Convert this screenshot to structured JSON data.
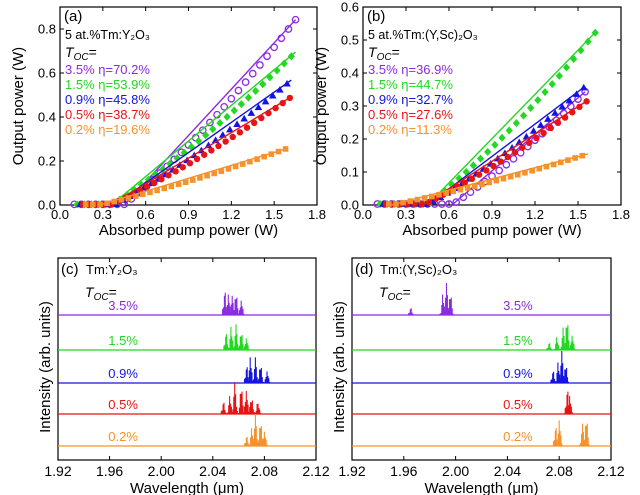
{
  "colors": {
    "p35": "#8a2be2",
    "p15": "#22d822",
    "p09": "#1414e0",
    "p05": "#e81414",
    "p02": "#f5922b"
  },
  "chart_data": [
    {
      "panel_label": "(a)",
      "type": "scatter",
      "material_text": "5 at.%Tm:Y₂O₃",
      "toc_text": "T",
      "toc_sub": "OC",
      "toc_eq": "=",
      "xlabel": "Absorbed pump power (W)",
      "ylabel": "Output power (W)",
      "xlim": [
        0,
        1.8
      ],
      "ylim": [
        0,
        0.9
      ],
      "xticks": [
        "0.0",
        "0.3",
        "0.6",
        "0.9",
        "1.2",
        "1.5",
        "1.8"
      ],
      "yticks": [
        "0.0",
        "0.2",
        "0.4",
        "0.6",
        "0.8"
      ],
      "series": [
        {
          "key": "p35",
          "name": "3.5% η=70.2%",
          "marker": "circle-open",
          "threshold": 0.45,
          "slope": 0.702,
          "xmax": 1.65
        },
        {
          "key": "p15",
          "name": "1.5% η=53.9%",
          "marker": "diamond",
          "threshold": 0.36,
          "slope": 0.539,
          "xmax": 1.65
        },
        {
          "key": "p09",
          "name": "0.9% η=45.8%",
          "marker": "triangle",
          "threshold": 0.38,
          "slope": 0.458,
          "xmax": 1.62
        },
        {
          "key": "p05",
          "name": "0.5% η=38.7%",
          "marker": "circle",
          "threshold": 0.35,
          "slope": 0.387,
          "xmax": 1.62
        },
        {
          "key": "p02",
          "name": "0.2% η=19.6%",
          "marker": "square",
          "threshold": 0.28,
          "slope": 0.196,
          "xmax": 1.58
        }
      ]
    },
    {
      "panel_label": "(b)",
      "type": "scatter",
      "material_text": "5 at.%Tm:(Y,Sc)₂O₃",
      "toc_text": "T",
      "toc_sub": "OC",
      "toc_eq": "=",
      "xlabel": "Absorbed pump power (W)",
      "ylabel": "Output power (W)",
      "xlim": [
        0,
        1.8
      ],
      "ylim": [
        0,
        0.6
      ],
      "xticks": [
        "0.0",
        "0.3",
        "0.6",
        "0.9",
        "1.2",
        "1.5",
        "1.8"
      ],
      "yticks": [
        "0.0",
        "0.1",
        "0.2",
        "0.3",
        "0.4",
        "0.5",
        "0.6"
      ],
      "series": [
        {
          "key": "p35",
          "name": "3.5% η=36.9%",
          "marker": "circle-open",
          "threshold": 0.62,
          "slope": 0.369,
          "xmax": 1.55
        },
        {
          "key": "p15",
          "name": "1.5% η=44.7%",
          "marker": "diamond",
          "threshold": 0.45,
          "slope": 0.447,
          "xmax": 1.63
        },
        {
          "key": "p09",
          "name": "0.9% η=32.7%",
          "marker": "triangle",
          "threshold": 0.45,
          "slope": 0.327,
          "xmax": 1.55
        },
        {
          "key": "p05",
          "name": "0.5% η=27.6%",
          "marker": "circle",
          "threshold": 0.42,
          "slope": 0.276,
          "xmax": 1.57
        },
        {
          "key": "p02",
          "name": "0.2% η=11.3%",
          "marker": "square",
          "threshold": 0.2,
          "slope": 0.113,
          "xmax": 1.57
        }
      ]
    },
    {
      "panel_label": "(c)",
      "type": "line",
      "material_text": "Tm:Y₂O₃",
      "toc_text": "T",
      "toc_sub": "OC",
      "toc_eq": "=",
      "xlabel": "Wavelength (μm)",
      "ylabel": "Intensity (arb. units)",
      "xlim": [
        1.92,
        2.12
      ],
      "xticks": [
        "1.92",
        "1.96",
        "2.00",
        "2.04",
        "2.08",
        "2.12"
      ],
      "series": [
        {
          "key": "p35",
          "name": "3.5%",
          "peaks": [
            [
              2.049,
              1.0
            ],
            [
              2.052,
              0.8
            ],
            [
              2.055,
              0.6
            ],
            [
              2.058,
              0.7
            ],
            [
              2.062,
              0.5
            ]
          ]
        },
        {
          "key": "p15",
          "name": "1.5%",
          "peaks": [
            [
              2.05,
              0.7
            ],
            [
              2.054,
              0.9
            ],
            [
              2.058,
              0.8
            ],
            [
              2.062,
              0.6
            ],
            [
              2.066,
              0.4
            ]
          ]
        },
        {
          "key": "p09",
          "name": "0.9%",
          "peaks": [
            [
              2.066,
              0.7
            ],
            [
              2.069,
              1.0
            ],
            [
              2.073,
              0.8
            ],
            [
              2.077,
              0.6
            ],
            [
              2.082,
              0.4
            ]
          ]
        },
        {
          "key": "p05",
          "name": "0.5%",
          "peaks": [
            [
              2.048,
              0.5
            ],
            [
              2.053,
              0.7
            ],
            [
              2.057,
              1.0
            ],
            [
              2.062,
              0.9
            ],
            [
              2.066,
              0.8
            ],
            [
              2.07,
              0.6
            ],
            [
              2.075,
              0.4
            ]
          ]
        },
        {
          "key": "p02",
          "name": "0.2%",
          "peaks": [
            [
              2.066,
              0.4
            ],
            [
              2.07,
              0.7
            ],
            [
              2.073,
              1.0
            ],
            [
              2.077,
              0.8
            ],
            [
              2.08,
              0.5
            ]
          ]
        }
      ]
    },
    {
      "panel_label": "(d)",
      "type": "line",
      "material_text": "Tm:(Y,Sc)₂O₃",
      "toc_text": "T",
      "toc_sub": "OC",
      "toc_eq": "=",
      "xlabel": "Wavelength (μm)",
      "ylabel": "Intensity (arb. units)",
      "xlim": [
        1.92,
        2.12
      ],
      "xticks": [
        "1.92",
        "1.96",
        "2.00",
        "2.04",
        "2.08",
        "2.12"
      ],
      "series": [
        {
          "key": "p35",
          "name": "3.5%",
          "peaks": [
            [
              1.965,
              0.3
            ],
            [
              1.99,
              0.8
            ],
            [
              1.993,
              1.0
            ],
            [
              1.996,
              0.7
            ]
          ]
        },
        {
          "key": "p15",
          "name": "1.5%",
          "peaks": [
            [
              2.072,
              0.3
            ],
            [
              2.078,
              0.5
            ],
            [
              2.083,
              0.7
            ],
            [
              2.086,
              1.0
            ],
            [
              2.09,
              0.5
            ]
          ]
        },
        {
          "key": "p09",
          "name": "0.9%",
          "peaks": [
            [
              2.075,
              0.5
            ],
            [
              2.079,
              0.8
            ],
            [
              2.082,
              1.0
            ],
            [
              2.085,
              0.6
            ]
          ]
        },
        {
          "key": "p05",
          "name": "0.5%",
          "peaks": [
            [
              2.086,
              1.0
            ],
            [
              2.088,
              0.7
            ]
          ]
        },
        {
          "key": "p02",
          "name": "0.2%",
          "peaks": [
            [
              2.077,
              0.8
            ],
            [
              2.08,
              1.0
            ],
            [
              2.098,
              0.7
            ],
            [
              2.101,
              0.9
            ]
          ]
        }
      ]
    }
  ]
}
